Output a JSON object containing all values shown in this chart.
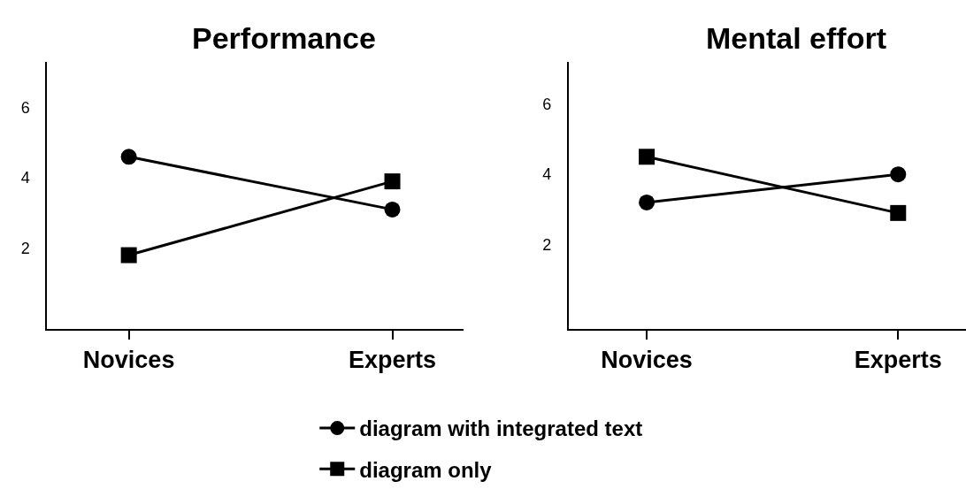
{
  "chart_data": [
    {
      "type": "line",
      "title": "Performance",
      "categories": [
        "Novices",
        "Experts"
      ],
      "ylim": [
        -0.3,
        7.3
      ],
      "yticks": [
        2,
        4,
        6
      ],
      "grid": false,
      "legend": "bottom",
      "series": [
        {
          "name": "diagram with integrated text",
          "color": "#000000",
          "marker": "circle",
          "values": [
            4.6,
            3.1
          ]
        },
        {
          "name": "diagram only",
          "color": "#000000",
          "marker": "square",
          "values": [
            1.8,
            3.9
          ]
        }
      ]
    },
    {
      "type": "line",
      "title": "Mental effort",
      "categories": [
        "Novices",
        "Experts"
      ],
      "ylim": [
        -0.4,
        7.2
      ],
      "yticks": [
        2,
        4,
        6
      ],
      "grid": false,
      "series": [
        {
          "color": "#000000",
          "marker": "circle",
          "values": [
            3.2,
            4.0
          ]
        },
        {
          "color": "#000000",
          "marker": "square",
          "values": [
            4.5,
            2.9
          ]
        }
      ]
    }
  ]
}
